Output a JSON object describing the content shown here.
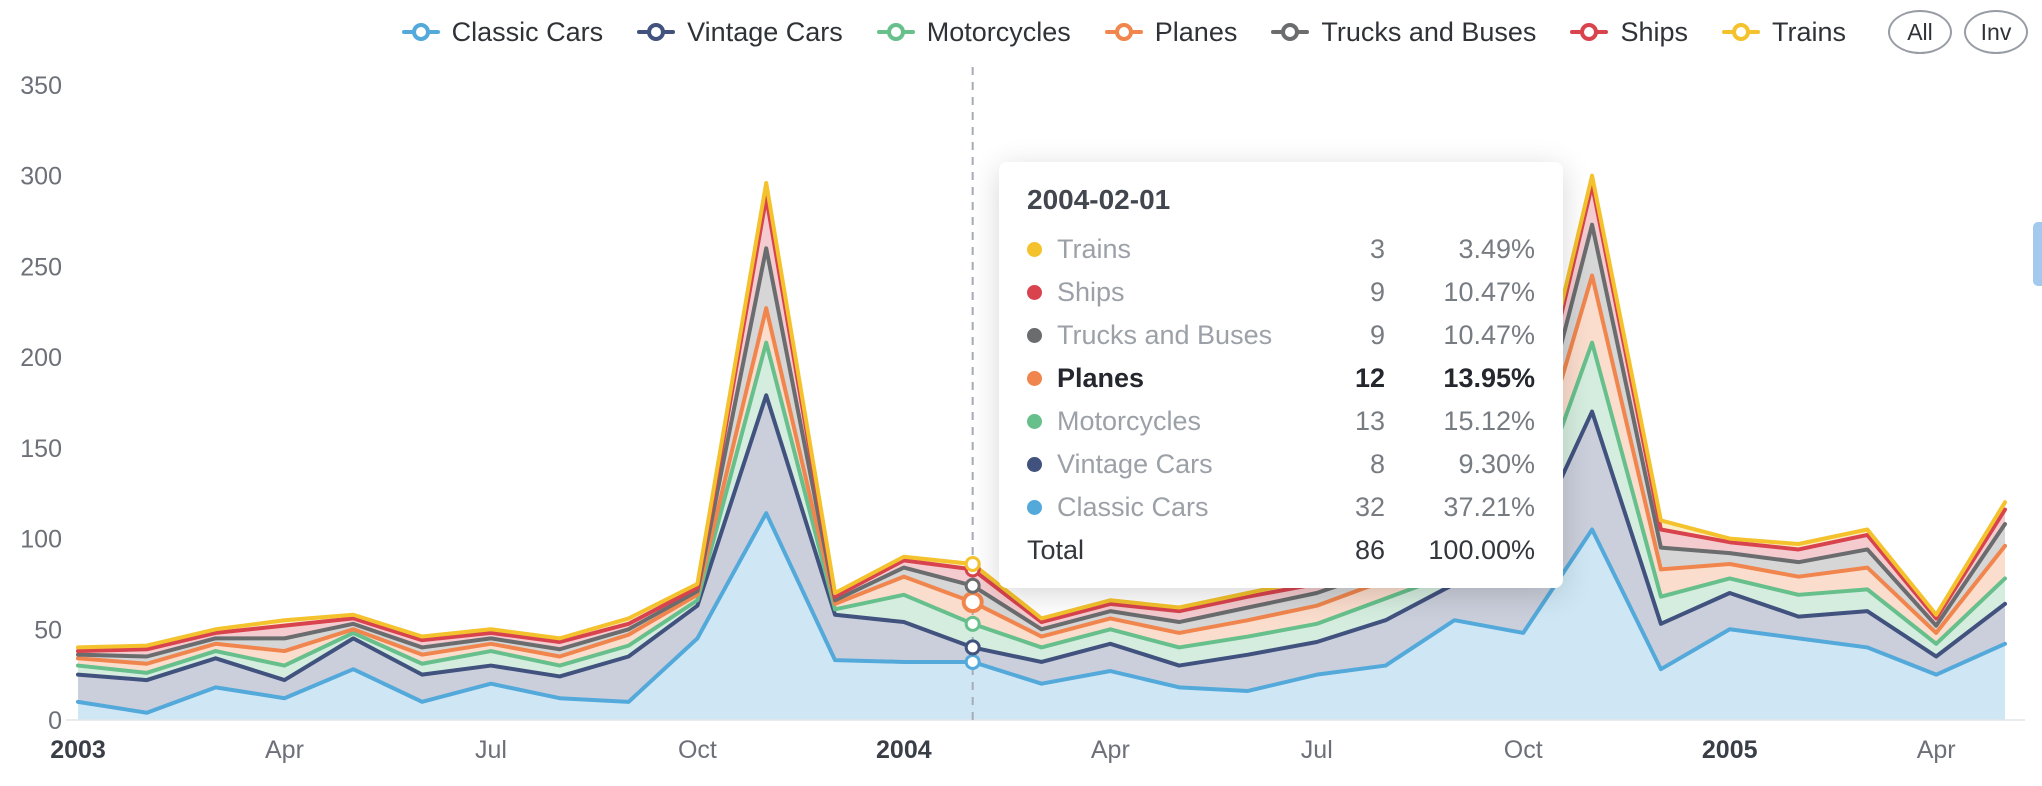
{
  "accent_colors": {
    "classic_cars": "#54A9DB",
    "vintage_cars": "#41527F",
    "motorcycles": "#67C08C",
    "planes": "#F0864D",
    "trucks_and_buses": "#6A6C6E",
    "ships": "#D8434E",
    "trains": "#F3C22C",
    "crosshair": "#A6ABB5",
    "axis_label": "#6E7079",
    "axis_label_strong": "#3A3F47"
  },
  "legend": {
    "items": [
      {
        "label": "Classic Cars",
        "color": "#54A9DB"
      },
      {
        "label": "Vintage Cars",
        "color": "#41527F"
      },
      {
        "label": "Motorcycles",
        "color": "#67C08C"
      },
      {
        "label": "Planes",
        "color": "#F0864D"
      },
      {
        "label": "Trucks and Buses",
        "color": "#6A6C6E"
      },
      {
        "label": "Ships",
        "color": "#D8434E"
      },
      {
        "label": "Trains",
        "color": "#F3C22C"
      }
    ],
    "buttons": [
      {
        "label": "All"
      },
      {
        "label": "Inv"
      }
    ]
  },
  "tooltip": {
    "title": "2004-02-01",
    "rows": [
      {
        "name": "Trains",
        "color": "#F3C22C",
        "value": "3",
        "percent": "3.49%",
        "bold": false
      },
      {
        "name": "Ships",
        "color": "#D8434E",
        "value": "9",
        "percent": "10.47%",
        "bold": false
      },
      {
        "name": "Trucks and Buses",
        "color": "#6A6C6E",
        "value": "9",
        "percent": "10.47%",
        "bold": false
      },
      {
        "name": "Planes",
        "color": "#F0864D",
        "value": "12",
        "percent": "13.95%",
        "bold": true
      },
      {
        "name": "Motorcycles",
        "color": "#67C08C",
        "value": "13",
        "percent": "15.12%",
        "bold": false
      },
      {
        "name": "Vintage Cars",
        "color": "#41527F",
        "value": "8",
        "percent": "9.30%",
        "bold": false
      },
      {
        "name": "Classic Cars",
        "color": "#54A9DB",
        "value": "32",
        "percent": "37.21%",
        "bold": false
      }
    ],
    "total": {
      "name": "Total",
      "value": "86",
      "percent": "100.00%"
    }
  },
  "chart_data": {
    "type": "area",
    "stacked": true,
    "grid": false,
    "legend_position": "top-right",
    "ylim": [
      0,
      350
    ],
    "y_ticks": [
      0,
      50,
      100,
      150,
      200,
      250,
      300,
      350
    ],
    "x": [
      "2003-01",
      "2003-02",
      "2003-03",
      "2003-04",
      "2003-05",
      "2003-06",
      "2003-07",
      "2003-08",
      "2003-09",
      "2003-10",
      "2003-11",
      "2003-12",
      "2004-01",
      "2004-02",
      "2004-03",
      "2004-04",
      "2004-05",
      "2004-06",
      "2004-07",
      "2004-08",
      "2004-09",
      "2004-10",
      "2004-11",
      "2004-12",
      "2005-01",
      "2005-02",
      "2005-03",
      "2005-04",
      "2005-05"
    ],
    "x_ticks": [
      {
        "index": 0,
        "label": "2003",
        "bold": true
      },
      {
        "index": 3,
        "label": "Apr",
        "bold": false
      },
      {
        "index": 6,
        "label": "Jul",
        "bold": false
      },
      {
        "index": 9,
        "label": "Oct",
        "bold": false
      },
      {
        "index": 12,
        "label": "2004",
        "bold": true
      },
      {
        "index": 15,
        "label": "Apr",
        "bold": false
      },
      {
        "index": 18,
        "label": "Jul",
        "bold": false
      },
      {
        "index": 21,
        "label": "Oct",
        "bold": false
      },
      {
        "index": 24,
        "label": "2005",
        "bold": true
      },
      {
        "index": 27,
        "label": "Apr",
        "bold": false
      }
    ],
    "highlight_index": 13,
    "highlight_series": "Planes",
    "series": [
      {
        "name": "Classic Cars",
        "color": "#54A9DB",
        "values": [
          10,
          4,
          18,
          12,
          28,
          10,
          20,
          12,
          10,
          45,
          114,
          33,
          32,
          32,
          20,
          27,
          18,
          16,
          25,
          30,
          55,
          48,
          105,
          28,
          50,
          45,
          40,
          25,
          42
        ]
      },
      {
        "name": "Vintage Cars",
        "color": "#41527F",
        "values": [
          15,
          18,
          16,
          10,
          17,
          15,
          10,
          12,
          25,
          18,
          65,
          25,
          22,
          8,
          12,
          15,
          12,
          20,
          18,
          25,
          20,
          40,
          65,
          25,
          20,
          12,
          20,
          10,
          22
        ]
      },
      {
        "name": "Motorcycles",
        "color": "#67C08C",
        "values": [
          5,
          4,
          4,
          8,
          3,
          6,
          8,
          6,
          6,
          3,
          29,
          3,
          15,
          13,
          8,
          8,
          10,
          10,
          10,
          12,
          6,
          14,
          38,
          15,
          8,
          12,
          12,
          7,
          14
        ]
      },
      {
        "name": "Planes",
        "color": "#F0864D",
        "values": [
          4,
          5,
          4,
          8,
          2,
          5,
          4,
          5,
          6,
          3,
          19,
          3,
          10,
          12,
          6,
          6,
          8,
          9,
          10,
          10,
          6,
          14,
          37,
          15,
          8,
          10,
          12,
          6,
          18
        ]
      },
      {
        "name": "Trucks and Buses",
        "color": "#6A6C6E",
        "values": [
          2,
          4,
          3,
          7,
          3,
          4,
          3,
          4,
          3,
          2,
          33,
          2,
          5,
          9,
          4,
          4,
          6,
          7,
          7,
          6,
          3,
          10,
          28,
          12,
          6,
          8,
          10,
          4,
          12
        ]
      },
      {
        "name": "Ships",
        "color": "#D8434E",
        "values": [
          2,
          4,
          3,
          7,
          3,
          4,
          3,
          4,
          3,
          2,
          28,
          2,
          4,
          9,
          4,
          4,
          6,
          6,
          5,
          4,
          3,
          9,
          22,
          10,
          6,
          7,
          8,
          4,
          8
        ]
      },
      {
        "name": "Trains",
        "color": "#F3C22C",
        "values": [
          2,
          2,
          2,
          3,
          2,
          2,
          2,
          2,
          3,
          2,
          8,
          2,
          2,
          3,
          2,
          2,
          2,
          2,
          3,
          3,
          2,
          5,
          5,
          5,
          2,
          3,
          3,
          2,
          4
        ]
      }
    ]
  }
}
